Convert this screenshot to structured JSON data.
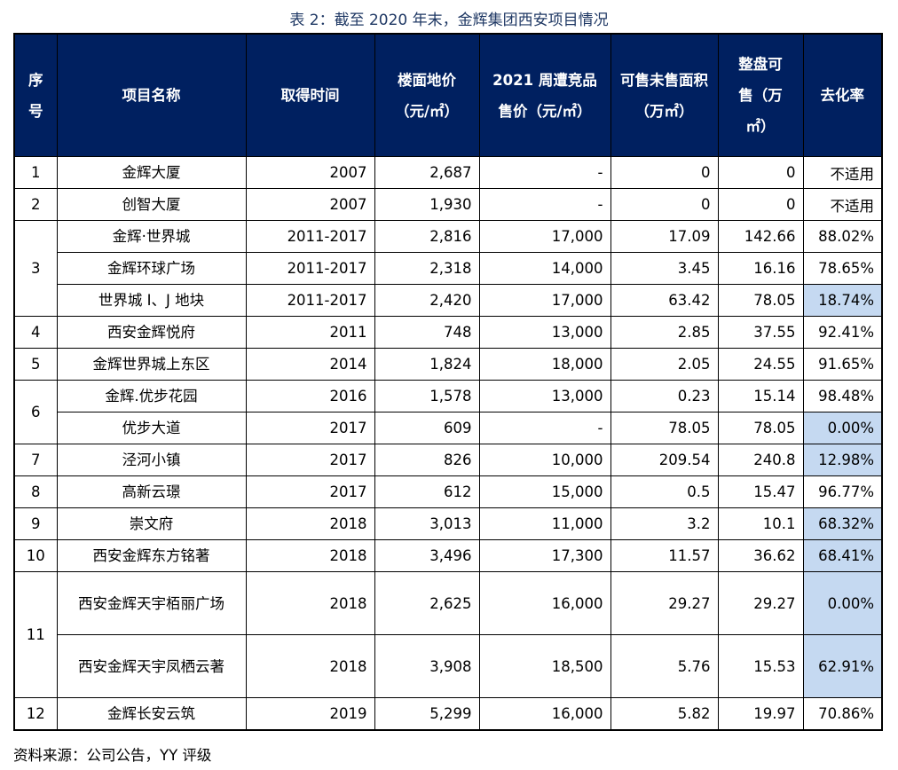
{
  "title": "表 2：截至 2020 年末，金辉集团西安项目情况",
  "headers": [
    "序号",
    "项目名称",
    "取得时间",
    "楼面地价（元/㎡）",
    "2021 周遭竞品售价（元/㎡）",
    "可售未售面积（万㎡）",
    "整盘可售（万㎡）",
    "去化率"
  ],
  "highlight_color": "#c5d9f1",
  "header_color": "#002060",
  "groups": [
    {
      "no": "1",
      "items": [
        {
          "name": "金辉大厦",
          "year": "2007",
          "land_price": "2,687",
          "comp_price": "-",
          "unsold": "0",
          "total": "0",
          "rate": "不适用",
          "highlight": false
        }
      ]
    },
    {
      "no": "2",
      "items": [
        {
          "name": "创智大厦",
          "year": "2007",
          "land_price": "1,930",
          "comp_price": "-",
          "unsold": "0",
          "total": "0",
          "rate": "不适用",
          "highlight": false
        }
      ]
    },
    {
      "no": "3",
      "items": [
        {
          "name": "金辉·世界城",
          "year": "2011-2017",
          "land_price": "2,816",
          "comp_price": "17,000",
          "unsold": "17.09",
          "total": "142.66",
          "rate": "88.02%",
          "highlight": false
        },
        {
          "name": "金辉环球广场",
          "year": "2011-2017",
          "land_price": "2,318",
          "comp_price": "14,000",
          "unsold": "3.45",
          "total": "16.16",
          "rate": "78.65%",
          "highlight": false
        },
        {
          "name": "世界城 I、J 地块",
          "year": "2011-2017",
          "land_price": "2,420",
          "comp_price": "17,000",
          "unsold": "63.42",
          "total": "78.05",
          "rate": "18.74%",
          "highlight": true
        }
      ]
    },
    {
      "no": "4",
      "items": [
        {
          "name": "西安金辉悦府",
          "year": "2011",
          "land_price": "748",
          "comp_price": "13,000",
          "unsold": "2.85",
          "total": "37.55",
          "rate": "92.41%",
          "highlight": false
        }
      ]
    },
    {
      "no": "5",
      "items": [
        {
          "name": "金辉世界城上东区",
          "year": "2014",
          "land_price": "1,824",
          "comp_price": "18,000",
          "unsold": "2.05",
          "total": "24.55",
          "rate": "91.65%",
          "highlight": false
        }
      ]
    },
    {
      "no": "6",
      "items": [
        {
          "name": "金辉.优步花园",
          "year": "2016",
          "land_price": "1,578",
          "comp_price": "13,000",
          "unsold": "0.23",
          "total": "15.14",
          "rate": "98.48%",
          "highlight": false
        },
        {
          "name": "优步大道",
          "year": "2017",
          "land_price": "609",
          "comp_price": "-",
          "unsold": "78.05",
          "total": "78.05",
          "rate": "0.00%",
          "highlight": true
        }
      ]
    },
    {
      "no": "7",
      "items": [
        {
          "name": "泾河小镇",
          "year": "2017",
          "land_price": "826",
          "comp_price": "10,000",
          "unsold": "209.54",
          "total": "240.8",
          "rate": "12.98%",
          "highlight": true
        }
      ]
    },
    {
      "no": "8",
      "items": [
        {
          "name": "高新云璟",
          "year": "2017",
          "land_price": "612",
          "comp_price": "15,000",
          "unsold": "0.5",
          "total": "15.47",
          "rate": "96.77%",
          "highlight": false
        }
      ]
    },
    {
      "no": "9",
      "items": [
        {
          "name": "崇文府",
          "year": "2018",
          "land_price": "3,013",
          "comp_price": "11,000",
          "unsold": "3.2",
          "total": "10.1",
          "rate": "68.32%",
          "highlight": true
        }
      ]
    },
    {
      "no": "10",
      "items": [
        {
          "name": "西安金辉东方铭著",
          "year": "2018",
          "land_price": "3,496",
          "comp_price": "17,300",
          "unsold": "11.57",
          "total": "36.62",
          "rate": "68.41%",
          "highlight": true
        }
      ]
    },
    {
      "no": "11",
      "items": [
        {
          "name": "西安金辉天宇栢丽广场",
          "year": "2018",
          "land_price": "2,625",
          "comp_price": "16,000",
          "unsold": "29.27",
          "total": "29.27",
          "rate": "0.00%",
          "highlight": true,
          "tall": true
        },
        {
          "name": "西安金辉天宇凤栖云著",
          "year": "2018",
          "land_price": "3,908",
          "comp_price": "18,500",
          "unsold": "5.76",
          "total": "15.53",
          "rate": "62.91%",
          "highlight": true,
          "tall": true
        }
      ]
    },
    {
      "no": "12",
      "items": [
        {
          "name": "金辉长安云筑",
          "year": "2019",
          "land_price": "5,299",
          "comp_price": "16,000",
          "unsold": "5.82",
          "total": "19.97",
          "rate": "70.86%",
          "highlight": false
        }
      ]
    }
  ],
  "footer": "资料来源：公司公告，YY 评级"
}
